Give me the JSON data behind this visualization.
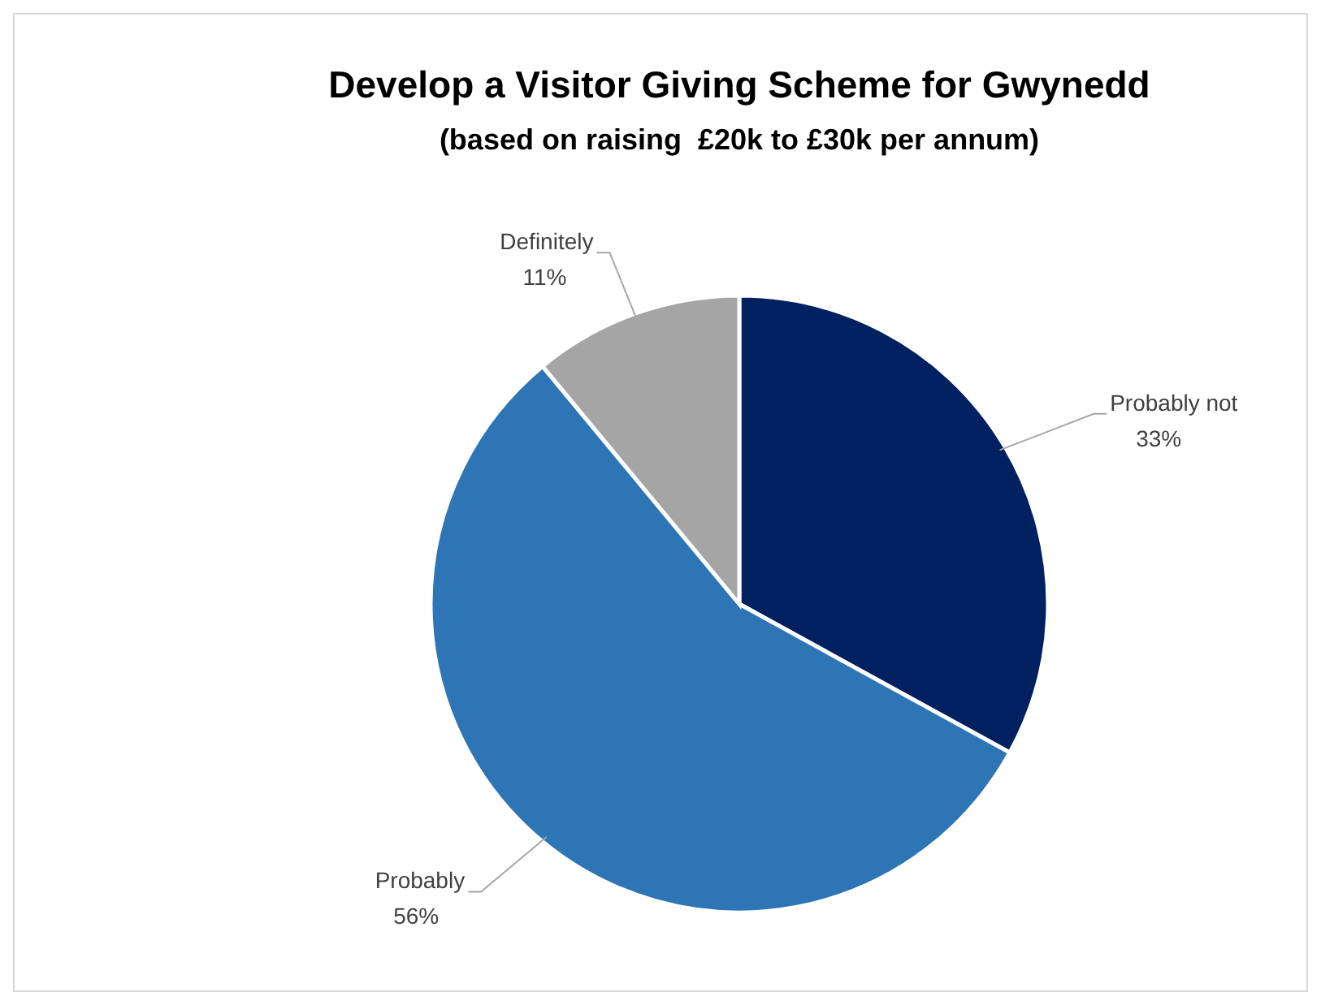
{
  "chart_data": {
    "type": "pie",
    "title": "Develop a Visitor Giving Scheme for Gwynedd",
    "subtitle": "(based on raising  £20k to £30k per annum)",
    "categories": [
      "Probably not",
      "Probably",
      "Definitely"
    ],
    "values": [
      33,
      56,
      11
    ],
    "colors": [
      "#002060",
      "#2e75b6",
      "#a5a5a5"
    ],
    "value_labels": [
      "33%",
      "56%",
      "11%"
    ],
    "legend": false
  }
}
